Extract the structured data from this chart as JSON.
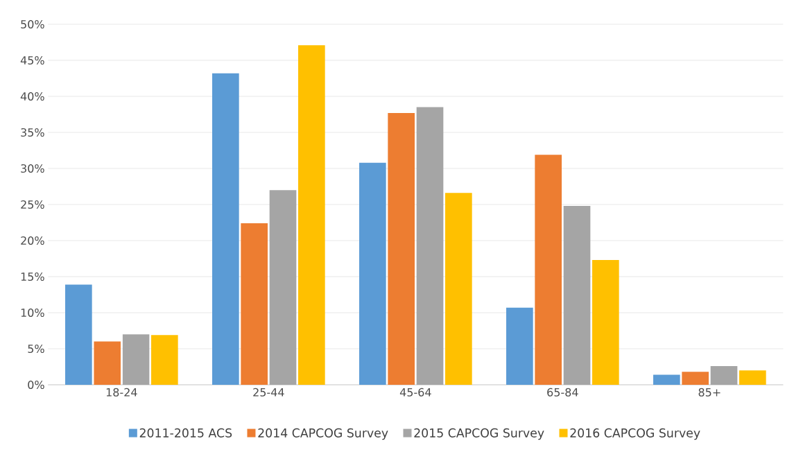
{
  "chart_data": {
    "type": "bar",
    "categories": [
      "18-24",
      "25-44",
      "45-64",
      "65-84",
      "85+"
    ],
    "series": [
      {
        "name": "2011-2015 ACS",
        "color": "#5b9bd5",
        "values": [
          13.9,
          43.2,
          30.8,
          10.7,
          1.4
        ]
      },
      {
        "name": "2014 CAPCOG Survey",
        "color": "#ed7d31",
        "values": [
          6.0,
          22.4,
          37.7,
          31.9,
          1.8
        ]
      },
      {
        "name": "2015 CAPCOG Survey",
        "color": "#a5a5a5",
        "values": [
          7.0,
          27.0,
          38.5,
          24.8,
          2.6
        ]
      },
      {
        "name": "2016 CAPCOG Survey",
        "color": "#ffc000",
        "values": [
          6.9,
          47.1,
          26.6,
          17.3,
          2.0
        ]
      }
    ],
    "ylim": [
      0,
      50
    ],
    "yticks": [
      {
        "value": 0,
        "label": "0%"
      },
      {
        "value": 5,
        "label": "5%"
      },
      {
        "value": 10,
        "label": "10%"
      },
      {
        "value": 15,
        "label": "15%"
      },
      {
        "value": 20,
        "label": "20%"
      },
      {
        "value": 25,
        "label": "25%"
      },
      {
        "value": 30,
        "label": "30%"
      },
      {
        "value": 35,
        "label": "35%"
      },
      {
        "value": 40,
        "label": "40%"
      },
      {
        "value": 45,
        "label": "45%"
      },
      {
        "value": 50,
        "label": "50%"
      }
    ],
    "grid": "y",
    "legend": "bottom"
  }
}
